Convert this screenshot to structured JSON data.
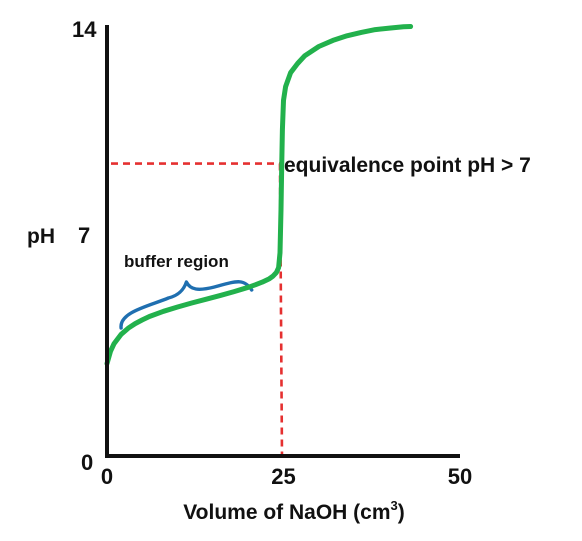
{
  "chart_data": {
    "type": "line",
    "title": "",
    "xlabel": "Volume of NaOH (cm",
    "xlabel_sup": "3",
    "xlabel_close": ")",
    "ylabel": "pH",
    "xlim": [
      0,
      50
    ],
    "ylim": [
      0,
      14
    ],
    "x_ticks": [
      0,
      25,
      50
    ],
    "x_tick_labels": [
      "0",
      "25",
      "50"
    ],
    "y_ticks": [
      0,
      7,
      14
    ],
    "y_tick_labels": [
      "0",
      "7",
      "14"
    ],
    "grid": false,
    "series": [
      {
        "color": "#22b14c",
        "x": [
          0,
          0.5,
          1,
          2,
          3,
          4,
          5,
          6,
          8,
          10,
          12,
          14,
          16,
          18,
          20,
          21,
          22,
          23,
          23.5,
          24,
          24.3,
          24.5,
          24.65,
          24.75,
          24.85,
          25,
          25.3,
          26,
          27,
          28,
          30,
          32,
          34,
          36,
          38,
          40,
          42,
          43
        ],
        "y": [
          3.0,
          3.4,
          3.65,
          3.95,
          4.15,
          4.3,
          4.42,
          4.53,
          4.7,
          4.84,
          4.97,
          5.09,
          5.21,
          5.34,
          5.48,
          5.56,
          5.65,
          5.76,
          5.84,
          5.96,
          6.12,
          6.6,
          8.0,
          9.4,
          10.6,
          11.55,
          12.0,
          12.45,
          12.75,
          13.0,
          13.3,
          13.5,
          13.65,
          13.76,
          13.85,
          13.9,
          13.94,
          13.95
        ]
      }
    ],
    "equivalence_point": {
      "x": 24.5,
      "y": 9.5
    },
    "reference_line_color": "#e53030",
    "annotations": {
      "equivalence": "equivalence point pH > 7",
      "buffer": "buffer region"
    },
    "buffer_range": [
      2,
      20.5
    ],
    "brace_color": "#1f6fb0",
    "axis_color": "#111111"
  }
}
